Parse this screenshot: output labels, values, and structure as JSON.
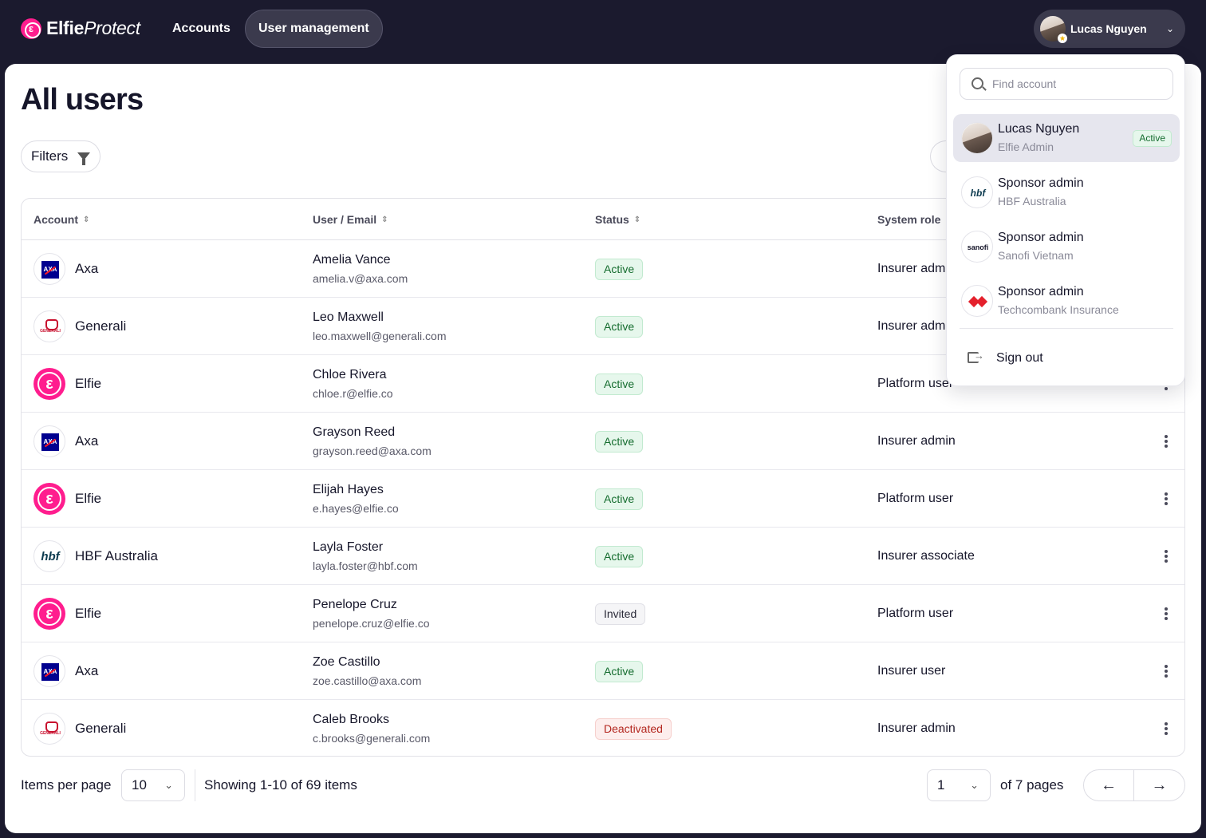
{
  "app": {
    "brand_bold": "Elfie",
    "brand_italic": "Protect",
    "brand_mark": "ε"
  },
  "nav": {
    "tabs": [
      {
        "label": "Accounts"
      },
      {
        "label": "User management"
      }
    ]
  },
  "user_menu": {
    "name": "Lucas Nguyen"
  },
  "page": {
    "title": "All users",
    "filters_label": "Filters"
  },
  "table": {
    "columns": [
      "Account",
      "User / Email",
      "Status",
      "System role"
    ],
    "rows": [
      {
        "account": "Axa",
        "logo": "axa",
        "name": "Amelia Vance",
        "email": "amelia.v@axa.com",
        "status": "Active",
        "role": "Insurer admin"
      },
      {
        "account": "Generali",
        "logo": "generali",
        "name": "Leo Maxwell",
        "email": "leo.maxwell@generali.com",
        "status": "Active",
        "role": "Insurer admin"
      },
      {
        "account": "Elfie",
        "logo": "elfie",
        "name": "Chloe Rivera",
        "email": "chloe.r@elfie.co",
        "status": "Active",
        "role": "Platform user"
      },
      {
        "account": "Axa",
        "logo": "axa",
        "name": "Grayson Reed",
        "email": "grayson.reed@axa.com",
        "status": "Active",
        "role": "Insurer admin"
      },
      {
        "account": "Elfie",
        "logo": "elfie",
        "name": "Elijah Hayes",
        "email": "e.hayes@elfie.co",
        "status": "Active",
        "role": "Platform user"
      },
      {
        "account": "HBF Australia",
        "logo": "hbf",
        "name": "Layla Foster",
        "email": "layla.foster@hbf.com",
        "status": "Active",
        "role": "Insurer associate"
      },
      {
        "account": "Elfie",
        "logo": "elfie",
        "name": "Penelope Cruz",
        "email": "penelope.cruz@elfie.co",
        "status": "Invited",
        "role": "Platform user"
      },
      {
        "account": "Axa",
        "logo": "axa",
        "name": "Zoe Castillo",
        "email": "zoe.castillo@axa.com",
        "status": "Active",
        "role": "Insurer user"
      },
      {
        "account": "Generali",
        "logo": "generali",
        "name": "Caleb Brooks",
        "email": "c.brooks@generali.com",
        "status": "Deactivated",
        "role": "Insurer admin"
      }
    ]
  },
  "logo_text": {
    "axa": "AXA",
    "generali": "GENERALI",
    "elfie": "ε",
    "hbf": "hbf",
    "sanofi": "sanofi"
  },
  "pagination": {
    "items_per_page_label": "Items per page",
    "items_per_page": "10",
    "showing": "Showing 1-10 of 69 items",
    "page": "1",
    "of_pages": "of 7 pages",
    "prev_icon": "←",
    "next_icon": "→"
  },
  "dropdown": {
    "search_placeholder": "Find account",
    "accounts": [
      {
        "title": "Lucas Nguyen",
        "subtitle": "Elfie Admin",
        "badge": "Active"
      },
      {
        "title": "Sponsor admin",
        "subtitle": "HBF Australia"
      },
      {
        "title": "Sponsor admin",
        "subtitle": "Sanofi Vietnam"
      },
      {
        "title": "Sponsor admin",
        "subtitle": "Techcombank Insurance"
      }
    ],
    "sign_out": "Sign out"
  },
  "colors": {
    "nav_bg": "#1b1a2e",
    "brand_pink": "#ff1d8e",
    "active_green": "#146c2e",
    "deactivated_red": "#b3261e"
  }
}
